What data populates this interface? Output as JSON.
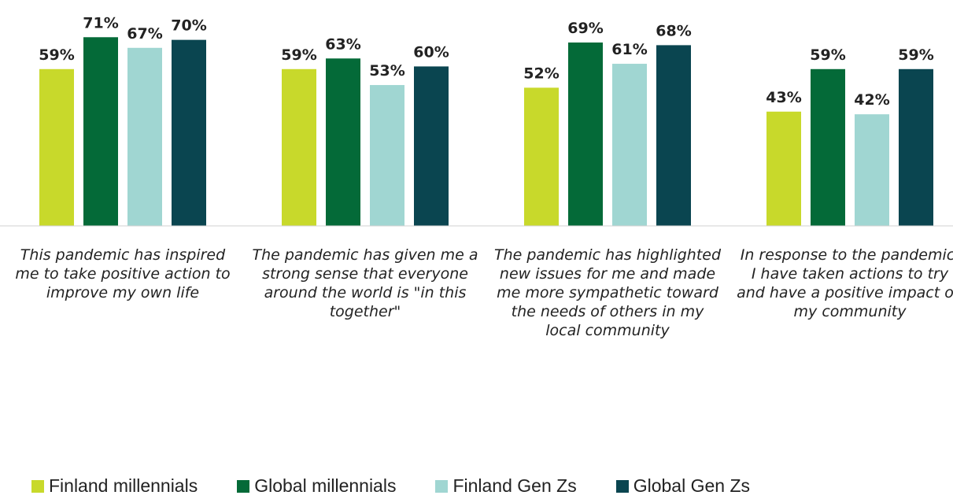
{
  "chart_data": {
    "type": "bar",
    "categories": [
      "This pandemic has inspired me to take positive action to improve my own life",
      "The pandemic has given me a strong sense that everyone around the world is \"in this together\"",
      "The pandemic has highlighted new issues for me and made me more sympathetic toward the needs of others in my local community",
      "In response to the pandemic, I have taken actions to try and have a positive impact on my community"
    ],
    "series": [
      {
        "name": "Finland millennials",
        "color": "#c8d92b",
        "values": [
          59,
          59,
          52,
          43
        ],
        "value_labels": [
          "59%",
          "59%",
          "52%",
          "43%"
        ]
      },
      {
        "name": "Global millennials",
        "color": "#046a38",
        "values": [
          71,
          63,
          69,
          59
        ],
        "value_labels": [
          "71%",
          "63%",
          "69%",
          "59%"
        ]
      },
      {
        "name": "Finland Gen Zs",
        "color": "#a0d6d2",
        "values": [
          67,
          53,
          61,
          42
        ],
        "value_labels": [
          "67%",
          "53%",
          "61%",
          "42%"
        ]
      },
      {
        "name": "Global Gen Zs",
        "color": "#0a4550",
        "values": [
          70,
          60,
          68,
          59
        ],
        "value_labels": [
          "70%",
          "60%",
          "68%",
          "59%"
        ]
      }
    ],
    "ylim": [
      0,
      85
    ],
    "legend": "bottom"
  }
}
